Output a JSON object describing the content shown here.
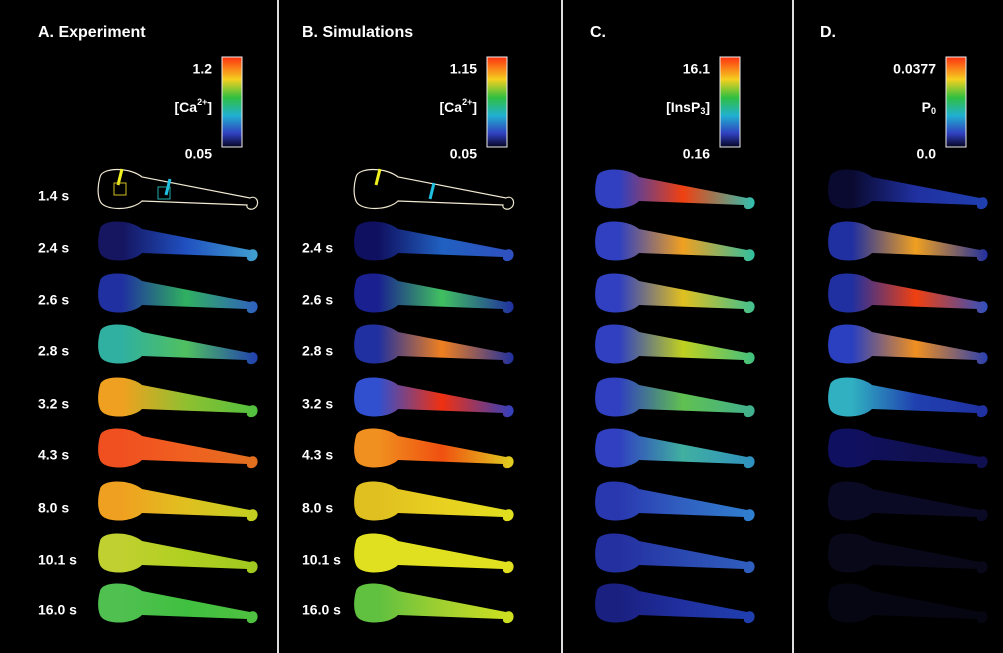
{
  "panels": [
    {
      "title": "A. Experiment",
      "scale": {
        "max": "1.2",
        "min": "0.05",
        "label": {
          "base": "[Ca",
          "sup": "2+",
          "tail": "]"
        }
      },
      "times": [
        "1.4 s",
        "2.4 s",
        "2.6 s",
        "2.8 s",
        "3.2 s",
        "4.3 s",
        "8.0 s",
        "10.1 s",
        "16.0 s"
      ]
    },
    {
      "title": "B. Simulations",
      "scale": {
        "max": "1.15",
        "min": "0.05",
        "label": {
          "base": "[Ca",
          "sup": "2+",
          "tail": "]"
        }
      },
      "times": [
        null,
        "2.4 s",
        "2.6 s",
        "2.8 s",
        "3.2 s",
        "4.3 s",
        "8.0 s",
        "10.1 s",
        "16.0 s"
      ]
    },
    {
      "title": "C.",
      "scale": {
        "max": "16.1",
        "min": "0.16",
        "label": {
          "base": "[InsP",
          "sub": "3",
          "tail": "]"
        }
      }
    },
    {
      "title": "D.",
      "scale": {
        "max": "0.0377",
        "min": "0.0",
        "label": {
          "base": "P",
          "sub": "0"
        }
      }
    }
  ]
}
